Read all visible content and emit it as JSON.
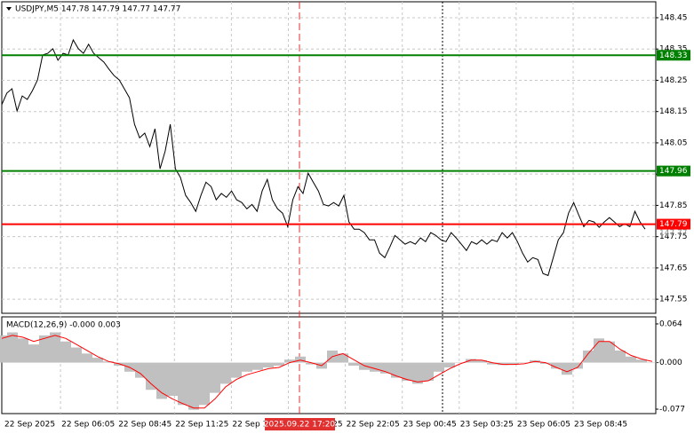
{
  "chart_data": [
    {
      "type": "line",
      "title": "USDJPY,M5  147.78 147.79 147.77 147.77",
      "color": "#000000",
      "grid": true,
      "ylim": [
        147.505,
        148.501
      ],
      "yticks": [
        147.55,
        147.65,
        147.75,
        147.85,
        147.95,
        148.05,
        148.15,
        148.25,
        148.35,
        148.45
      ],
      "xtick_labels": [
        "22 Sep 2025",
        "22 Sep 06:05",
        "22 Sep 08:45",
        "22 Sep 11:25",
        "22 Sep 1",
        "2025.09.22 17:20",
        "22 Sep 19:25",
        "22 Sep 22:05",
        "23 Sep 00:45",
        "23 Sep 03:25",
        "23 Sep 06:05",
        "23 Sep 08:45"
      ],
      "crosshair_index": 5,
      "current_price": 147.77,
      "levels": [
        {
          "value": 148.33,
          "color": "#008000"
        },
        {
          "value": 147.96,
          "color": "#008000"
        },
        {
          "value": 147.79,
          "color": "#ff0000"
        }
      ],
      "values": [
        148.172,
        148.209,
        148.223,
        148.152,
        148.2,
        148.189,
        148.217,
        148.251,
        148.331,
        148.336,
        148.351,
        148.314,
        148.336,
        148.331,
        148.379,
        148.351,
        148.336,
        148.365,
        148.336,
        148.322,
        148.308,
        148.285,
        148.265,
        148.251,
        148.223,
        148.194,
        148.109,
        148.066,
        148.081,
        148.038,
        148.095,
        147.967,
        148.024,
        148.109,
        147.967,
        147.939,
        147.882,
        147.859,
        147.831,
        147.882,
        147.924,
        147.91,
        147.868,
        147.888,
        147.876,
        147.896,
        147.868,
        147.859,
        147.839,
        147.853,
        147.831,
        147.896,
        147.933,
        147.868,
        147.839,
        147.825,
        147.782,
        147.868,
        147.91,
        147.888,
        147.953,
        147.924,
        147.896,
        147.853,
        147.848,
        147.859,
        147.848,
        147.882,
        147.797,
        147.774,
        147.774,
        147.763,
        147.74,
        147.74,
        147.697,
        147.683,
        147.717,
        147.754,
        147.74,
        147.726,
        147.734,
        147.726,
        147.746,
        147.734,
        147.763,
        147.754,
        147.74,
        147.734,
        147.763,
        147.746,
        147.726,
        147.706,
        147.734,
        147.726,
        147.74,
        147.726,
        147.74,
        147.734,
        147.763,
        147.746,
        147.763,
        147.734,
        147.697,
        147.669,
        147.683,
        147.677,
        147.632,
        147.626,
        147.683,
        147.74,
        147.763,
        147.825,
        147.859,
        147.819,
        147.782,
        147.802,
        147.797,
        147.78,
        147.797,
        147.811,
        147.797,
        147.782,
        147.791,
        147.782,
        147.831,
        147.797,
        147.774
      ]
    },
    {
      "type": "macd",
      "title": "MACD(12,26,9) -0.000 0.003",
      "hist_color": "#c0c0c0",
      "signal_color": "#ff0000",
      "ylim": [
        -0.0843,
        0.0757
      ],
      "yticks": [
        0.064,
        {
          "value": 0,
          "label": "0.000"
        },
        -0.077
      ],
      "histogram": [
        0.045,
        0.05,
        0.04,
        0.03,
        0.045,
        0.05,
        0.035,
        0.025,
        0.015,
        0.008,
        0.002,
        -0.005,
        -0.015,
        -0.025,
        -0.045,
        -0.06,
        -0.055,
        -0.07,
        -0.078,
        -0.07,
        -0.05,
        -0.035,
        -0.025,
        -0.015,
        -0.012,
        -0.008,
        -0.005,
        0.005,
        0.01,
        -0.003,
        -0.01,
        0.02,
        0.015,
        -0.005,
        -0.012,
        -0.015,
        -0.018,
        -0.025,
        -0.03,
        -0.035,
        -0.03,
        -0.015,
        -0.008,
        0.0,
        0.006,
        0.004,
        -0.003,
        -0.004,
        -0.003,
        0.0,
        0.004,
        -0.002,
        -0.01,
        -0.02,
        -0.01,
        0.02,
        0.04,
        0.035,
        0.02,
        0.01,
        0.005,
        0.0
      ],
      "signal": [
        0.04,
        0.045,
        0.042,
        0.035,
        0.04,
        0.045,
        0.04,
        0.03,
        0.02,
        0.01,
        0.002,
        -0.002,
        -0.008,
        -0.018,
        -0.035,
        -0.05,
        -0.06,
        -0.068,
        -0.075,
        -0.075,
        -0.06,
        -0.04,
        -0.028,
        -0.02,
        -0.015,
        -0.01,
        -0.008,
        0.0,
        0.004,
        0.0,
        -0.005,
        0.01,
        0.015,
        0.005,
        -0.005,
        -0.01,
        -0.015,
        -0.022,
        -0.028,
        -0.032,
        -0.03,
        -0.02,
        -0.01,
        -0.002,
        0.004,
        0.004,
        0.0,
        -0.003,
        -0.003,
        -0.002,
        0.002,
        0.0,
        -0.008,
        -0.015,
        -0.008,
        0.015,
        0.035,
        0.035,
        0.022,
        0.012,
        0.006,
        0.002
      ]
    }
  ]
}
